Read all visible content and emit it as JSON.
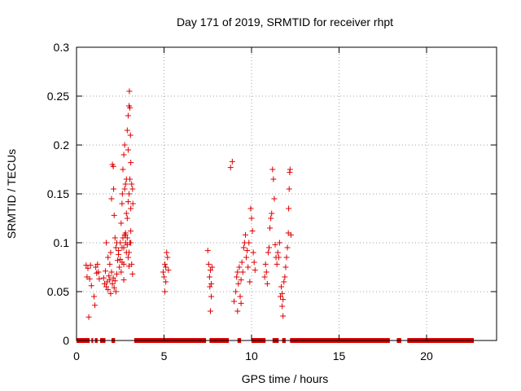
{
  "chart_data": {
    "type": "scatter",
    "title": "Day 171 of 2019, SRMTID for receiver rhpt",
    "xlabel": "GPS time / hours",
    "ylabel": "SRMTID / TECUs",
    "xlim": [
      0,
      24.0
    ],
    "ylim": [
      0,
      0.3
    ],
    "xticks": [
      0,
      5,
      10,
      15,
      20
    ],
    "xtick_labels": [
      "0",
      "5",
      "10",
      "15",
      "20"
    ],
    "yticks": [
      0,
      0.05,
      0.1,
      0.15,
      0.2,
      0.25,
      0.3
    ],
    "ytick_labels": [
      "0",
      "0.05",
      "0.1",
      "0.15",
      "0.2",
      "0.25",
      "0.3"
    ],
    "grid": true,
    "marker": "+",
    "color": "#dd0000",
    "zero_segments": [
      [
        0.0,
        0.75
      ],
      [
        0.85,
        0.95
      ],
      [
        1.05,
        1.2
      ],
      [
        1.35,
        1.65
      ],
      [
        2.0,
        2.2
      ],
      [
        3.3,
        7.4
      ],
      [
        7.6,
        8.7
      ],
      [
        9.2,
        9.4
      ],
      [
        10.0,
        10.8
      ],
      [
        11.2,
        11.55
      ],
      [
        11.75,
        11.95
      ],
      [
        12.2,
        17.9
      ],
      [
        18.3,
        18.55
      ],
      [
        18.9,
        22.7
      ]
    ],
    "series": [
      {
        "name": "SRMTID",
        "points": [
          [
            0.55,
            0.077
          ],
          [
            0.6,
            0.065
          ],
          [
            0.65,
            0.074
          ],
          [
            0.7,
            0.024
          ],
          [
            0.75,
            0.063
          ],
          [
            0.8,
            0.077
          ],
          [
            0.85,
            0.056
          ],
          [
            1.0,
            0.045
          ],
          [
            1.05,
            0.036
          ],
          [
            1.1,
            0.075
          ],
          [
            1.15,
            0.069
          ],
          [
            1.2,
            0.078
          ],
          [
            1.25,
            0.07
          ],
          [
            1.3,
            0.063
          ],
          [
            1.55,
            0.064
          ],
          [
            1.6,
            0.058
          ],
          [
            1.65,
            0.071
          ],
          [
            1.7,
            0.055
          ],
          [
            1.75,
            0.06
          ],
          [
            1.8,
            0.052
          ],
          [
            1.85,
            0.066
          ],
          [
            1.9,
            0.062
          ],
          [
            1.95,
            0.048
          ],
          [
            2.0,
            0.07
          ],
          [
            2.05,
            0.058
          ],
          [
            2.1,
            0.064
          ],
          [
            2.15,
            0.054
          ],
          [
            2.2,
            0.061
          ],
          [
            2.25,
            0.05
          ],
          [
            2.3,
            0.068
          ],
          [
            1.7,
            0.1
          ],
          [
            1.8,
            0.085
          ],
          [
            1.9,
            0.078
          ],
          [
            1.95,
            0.09
          ],
          [
            2.0,
            0.145
          ],
          [
            2.05,
            0.18
          ],
          [
            2.1,
            0.178
          ],
          [
            2.12,
            0.155
          ],
          [
            2.15,
            0.128
          ],
          [
            2.2,
            0.105
          ],
          [
            2.25,
            0.095
          ],
          [
            2.3,
            0.1
          ],
          [
            2.35,
            0.082
          ],
          [
            2.4,
            0.088
          ],
          [
            2.45,
            0.075
          ],
          [
            2.5,
            0.1
          ],
          [
            2.55,
            0.07
          ],
          [
            2.6,
            0.08
          ],
          [
            2.65,
            0.105
          ],
          [
            2.7,
            0.095
          ],
          [
            2.75,
            0.108
          ],
          [
            2.8,
            0.11
          ],
          [
            2.85,
            0.09
          ],
          [
            2.9,
            0.098
          ],
          [
            2.95,
            0.085
          ],
          [
            3.0,
            0.076
          ],
          [
            3.05,
            0.1
          ],
          [
            3.1,
            0.112
          ],
          [
            3.15,
            0.078
          ],
          [
            3.2,
            0.068
          ],
          [
            2.4,
            0.092
          ],
          [
            2.5,
            0.083
          ],
          [
            2.6,
            0.095
          ],
          [
            2.7,
            0.078
          ],
          [
            2.8,
            0.1
          ],
          [
            2.9,
            0.105
          ],
          [
            3.0,
            0.09
          ],
          [
            3.1,
            0.1
          ],
          [
            2.55,
            0.12
          ],
          [
            2.6,
            0.14
          ],
          [
            2.62,
            0.15
          ],
          [
            2.65,
            0.175
          ],
          [
            2.7,
            0.19
          ],
          [
            2.75,
            0.2
          ],
          [
            2.8,
            0.16
          ],
          [
            2.85,
            0.165
          ],
          [
            2.9,
            0.215
          ],
          [
            2.95,
            0.23
          ],
          [
            3.0,
            0.24
          ],
          [
            3.02,
            0.255
          ],
          [
            3.05,
            0.238
          ],
          [
            3.08,
            0.21
          ],
          [
            3.1,
            0.182
          ],
          [
            3.15,
            0.16
          ],
          [
            3.2,
            0.155
          ],
          [
            3.22,
            0.14
          ],
          [
            2.85,
            0.13
          ],
          [
            2.9,
            0.125
          ],
          [
            2.95,
            0.142
          ],
          [
            3.0,
            0.15
          ],
          [
            3.05,
            0.165
          ],
          [
            2.8,
            0.108
          ],
          [
            2.7,
            0.062
          ],
          [
            2.95,
            0.195
          ],
          [
            3.1,
            0.135
          ],
          [
            2.75,
            0.155
          ],
          [
            4.95,
            0.07
          ],
          [
            5.0,
            0.065
          ],
          [
            5.05,
            0.078
          ],
          [
            5.1,
            0.075
          ],
          [
            5.15,
            0.09
          ],
          [
            5.2,
            0.085
          ],
          [
            5.25,
            0.072
          ],
          [
            5.05,
            0.05
          ],
          [
            5.1,
            0.06
          ],
          [
            7.5,
            0.092
          ],
          [
            7.55,
            0.078
          ],
          [
            7.6,
            0.065
          ],
          [
            7.62,
            0.055
          ],
          [
            7.65,
            0.072
          ],
          [
            7.7,
            0.058
          ],
          [
            7.75,
            0.075
          ],
          [
            7.65,
            0.03
          ],
          [
            7.7,
            0.045
          ],
          [
            8.8,
            0.177
          ],
          [
            8.9,
            0.183
          ],
          [
            9.0,
            0.04
          ],
          [
            9.1,
            0.05
          ],
          [
            9.15,
            0.065
          ],
          [
            9.2,
            0.07
          ],
          [
            9.25,
            0.058
          ],
          [
            9.3,
            0.075
          ],
          [
            9.35,
            0.045
          ],
          [
            9.4,
            0.062
          ],
          [
            9.45,
            0.08
          ],
          [
            9.5,
            0.07
          ],
          [
            9.55,
            0.095
          ],
          [
            9.6,
            0.1
          ],
          [
            9.65,
            0.108
          ],
          [
            9.7,
            0.085
          ],
          [
            9.75,
            0.092
          ],
          [
            9.8,
            0.075
          ],
          [
            9.85,
            0.1
          ],
          [
            9.9,
            0.06
          ],
          [
            9.95,
            0.135
          ],
          [
            10.0,
            0.125
          ],
          [
            10.05,
            0.112
          ],
          [
            10.1,
            0.09
          ],
          [
            10.15,
            0.08
          ],
          [
            10.2,
            0.072
          ],
          [
            9.2,
            0.03
          ],
          [
            9.4,
            0.038
          ],
          [
            10.75,
            0.065
          ],
          [
            10.8,
            0.078
          ],
          [
            10.85,
            0.07
          ],
          [
            10.9,
            0.058
          ],
          [
            10.95,
            0.09
          ],
          [
            11.0,
            0.095
          ],
          [
            11.05,
            0.115
          ],
          [
            11.1,
            0.125
          ],
          [
            11.15,
            0.13
          ],
          [
            11.2,
            0.175
          ],
          [
            11.25,
            0.165
          ],
          [
            11.3,
            0.145
          ],
          [
            11.35,
            0.098
          ],
          [
            11.4,
            0.085
          ],
          [
            11.45,
            0.078
          ],
          [
            11.5,
            0.09
          ],
          [
            11.55,
            0.085
          ],
          [
            11.6,
            0.1
          ],
          [
            11.65,
            0.045
          ],
          [
            11.7,
            0.055
          ],
          [
            11.75,
            0.035
          ],
          [
            11.8,
            0.025
          ],
          [
            11.85,
            0.06
          ],
          [
            11.9,
            0.065
          ],
          [
            11.95,
            0.075
          ],
          [
            12.0,
            0.085
          ],
          [
            12.05,
            0.095
          ],
          [
            12.1,
            0.11
          ],
          [
            12.12,
            0.135
          ],
          [
            12.15,
            0.155
          ],
          [
            12.18,
            0.172
          ],
          [
            12.2,
            0.175
          ],
          [
            12.25,
            0.108
          ],
          [
            11.75,
            0.048
          ],
          [
            11.8,
            0.042
          ]
        ]
      }
    ]
  }
}
